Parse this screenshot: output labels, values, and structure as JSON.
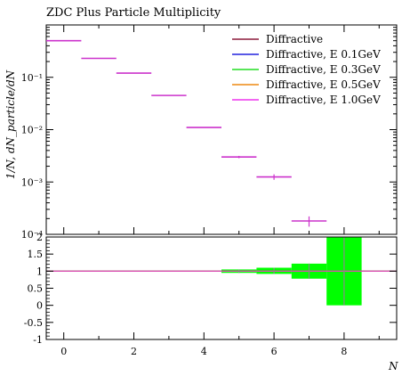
{
  "chart_data": {
    "type": "scatter",
    "title": "ZDC Plus Particle Multiplicity",
    "xlabel": "N",
    "ylabel": "1/N, dN_particle/dN",
    "xlim": [
      -0.5,
      9.5
    ],
    "main_ylim": [
      0.0001,
      1
    ],
    "main_yscale": "log",
    "ratio_ylim": [
      -1,
      2
    ],
    "legend_position": "top-right",
    "x_tick_labels": [
      "0",
      "2",
      "4",
      "6",
      "8"
    ],
    "main_y_tick_labels": [
      "10⁻¹",
      "10⁻²",
      "10⁻³",
      "10⁻⁴"
    ],
    "ratio_y_tick_labels": [
      "2",
      "1.5",
      "1",
      "0.5",
      "0",
      "-0.5",
      "-1"
    ],
    "main_bins": [
      {
        "xlo": -0.5,
        "xhi": 0.5,
        "y": 0.5,
        "err": 0
      },
      {
        "xlo": 0.5,
        "xhi": 1.5,
        "y": 0.23,
        "err": 0
      },
      {
        "xlo": 1.5,
        "xhi": 2.5,
        "y": 0.12,
        "err": 0
      },
      {
        "xlo": 2.5,
        "xhi": 3.5,
        "y": 0.045,
        "err": 0
      },
      {
        "xlo": 3.5,
        "xhi": 4.5,
        "y": 0.011,
        "err": 0
      },
      {
        "xlo": 4.5,
        "xhi": 5.5,
        "y": 0.003,
        "err": 0.00015
      },
      {
        "xlo": 5.5,
        "xhi": 6.5,
        "y": 0.00125,
        "err": 0.00015
      },
      {
        "xlo": 6.5,
        "xhi": 7.5,
        "y": 0.00018,
        "err": 4e-05
      }
    ],
    "ratio_bands": [
      {
        "xlo": 4.5,
        "xhi": 5.5,
        "lo": 0.95,
        "hi": 1.05
      },
      {
        "xlo": 5.5,
        "xhi": 6.5,
        "lo": 0.92,
        "hi": 1.1
      },
      {
        "xlo": 6.5,
        "xhi": 7.5,
        "lo": 0.78,
        "hi": 1.22
      },
      {
        "xlo": 7.5,
        "xhi": 8.5,
        "lo": 0.0,
        "hi": 2.0
      }
    ],
    "ratio_error_bars": [
      {
        "x": 5,
        "lo": 0.95,
        "hi": 1.05
      },
      {
        "x": 6,
        "lo": 0.92,
        "hi": 1.1
      },
      {
        "x": 7,
        "lo": 0.78,
        "hi": 1.22
      },
      {
        "x": 8,
        "lo": 0.0,
        "hi": 2.0
      }
    ],
    "series": [
      {
        "name": "Diffractive",
        "color": "#8b1a3a"
      },
      {
        "name": "Diffractive, E 0.1GeV",
        "color": "#2222dd"
      },
      {
        "name": "Diffractive, E 0.3GeV",
        "color": "#22dd22"
      },
      {
        "name": "Diffractive, E 0.5GeV",
        "color": "#ee8811"
      },
      {
        "name": "Diffractive, E 1.0GeV",
        "color": "#ee33ee"
      }
    ],
    "band_color": "#00ff00",
    "data_color": "#cc33cc"
  }
}
